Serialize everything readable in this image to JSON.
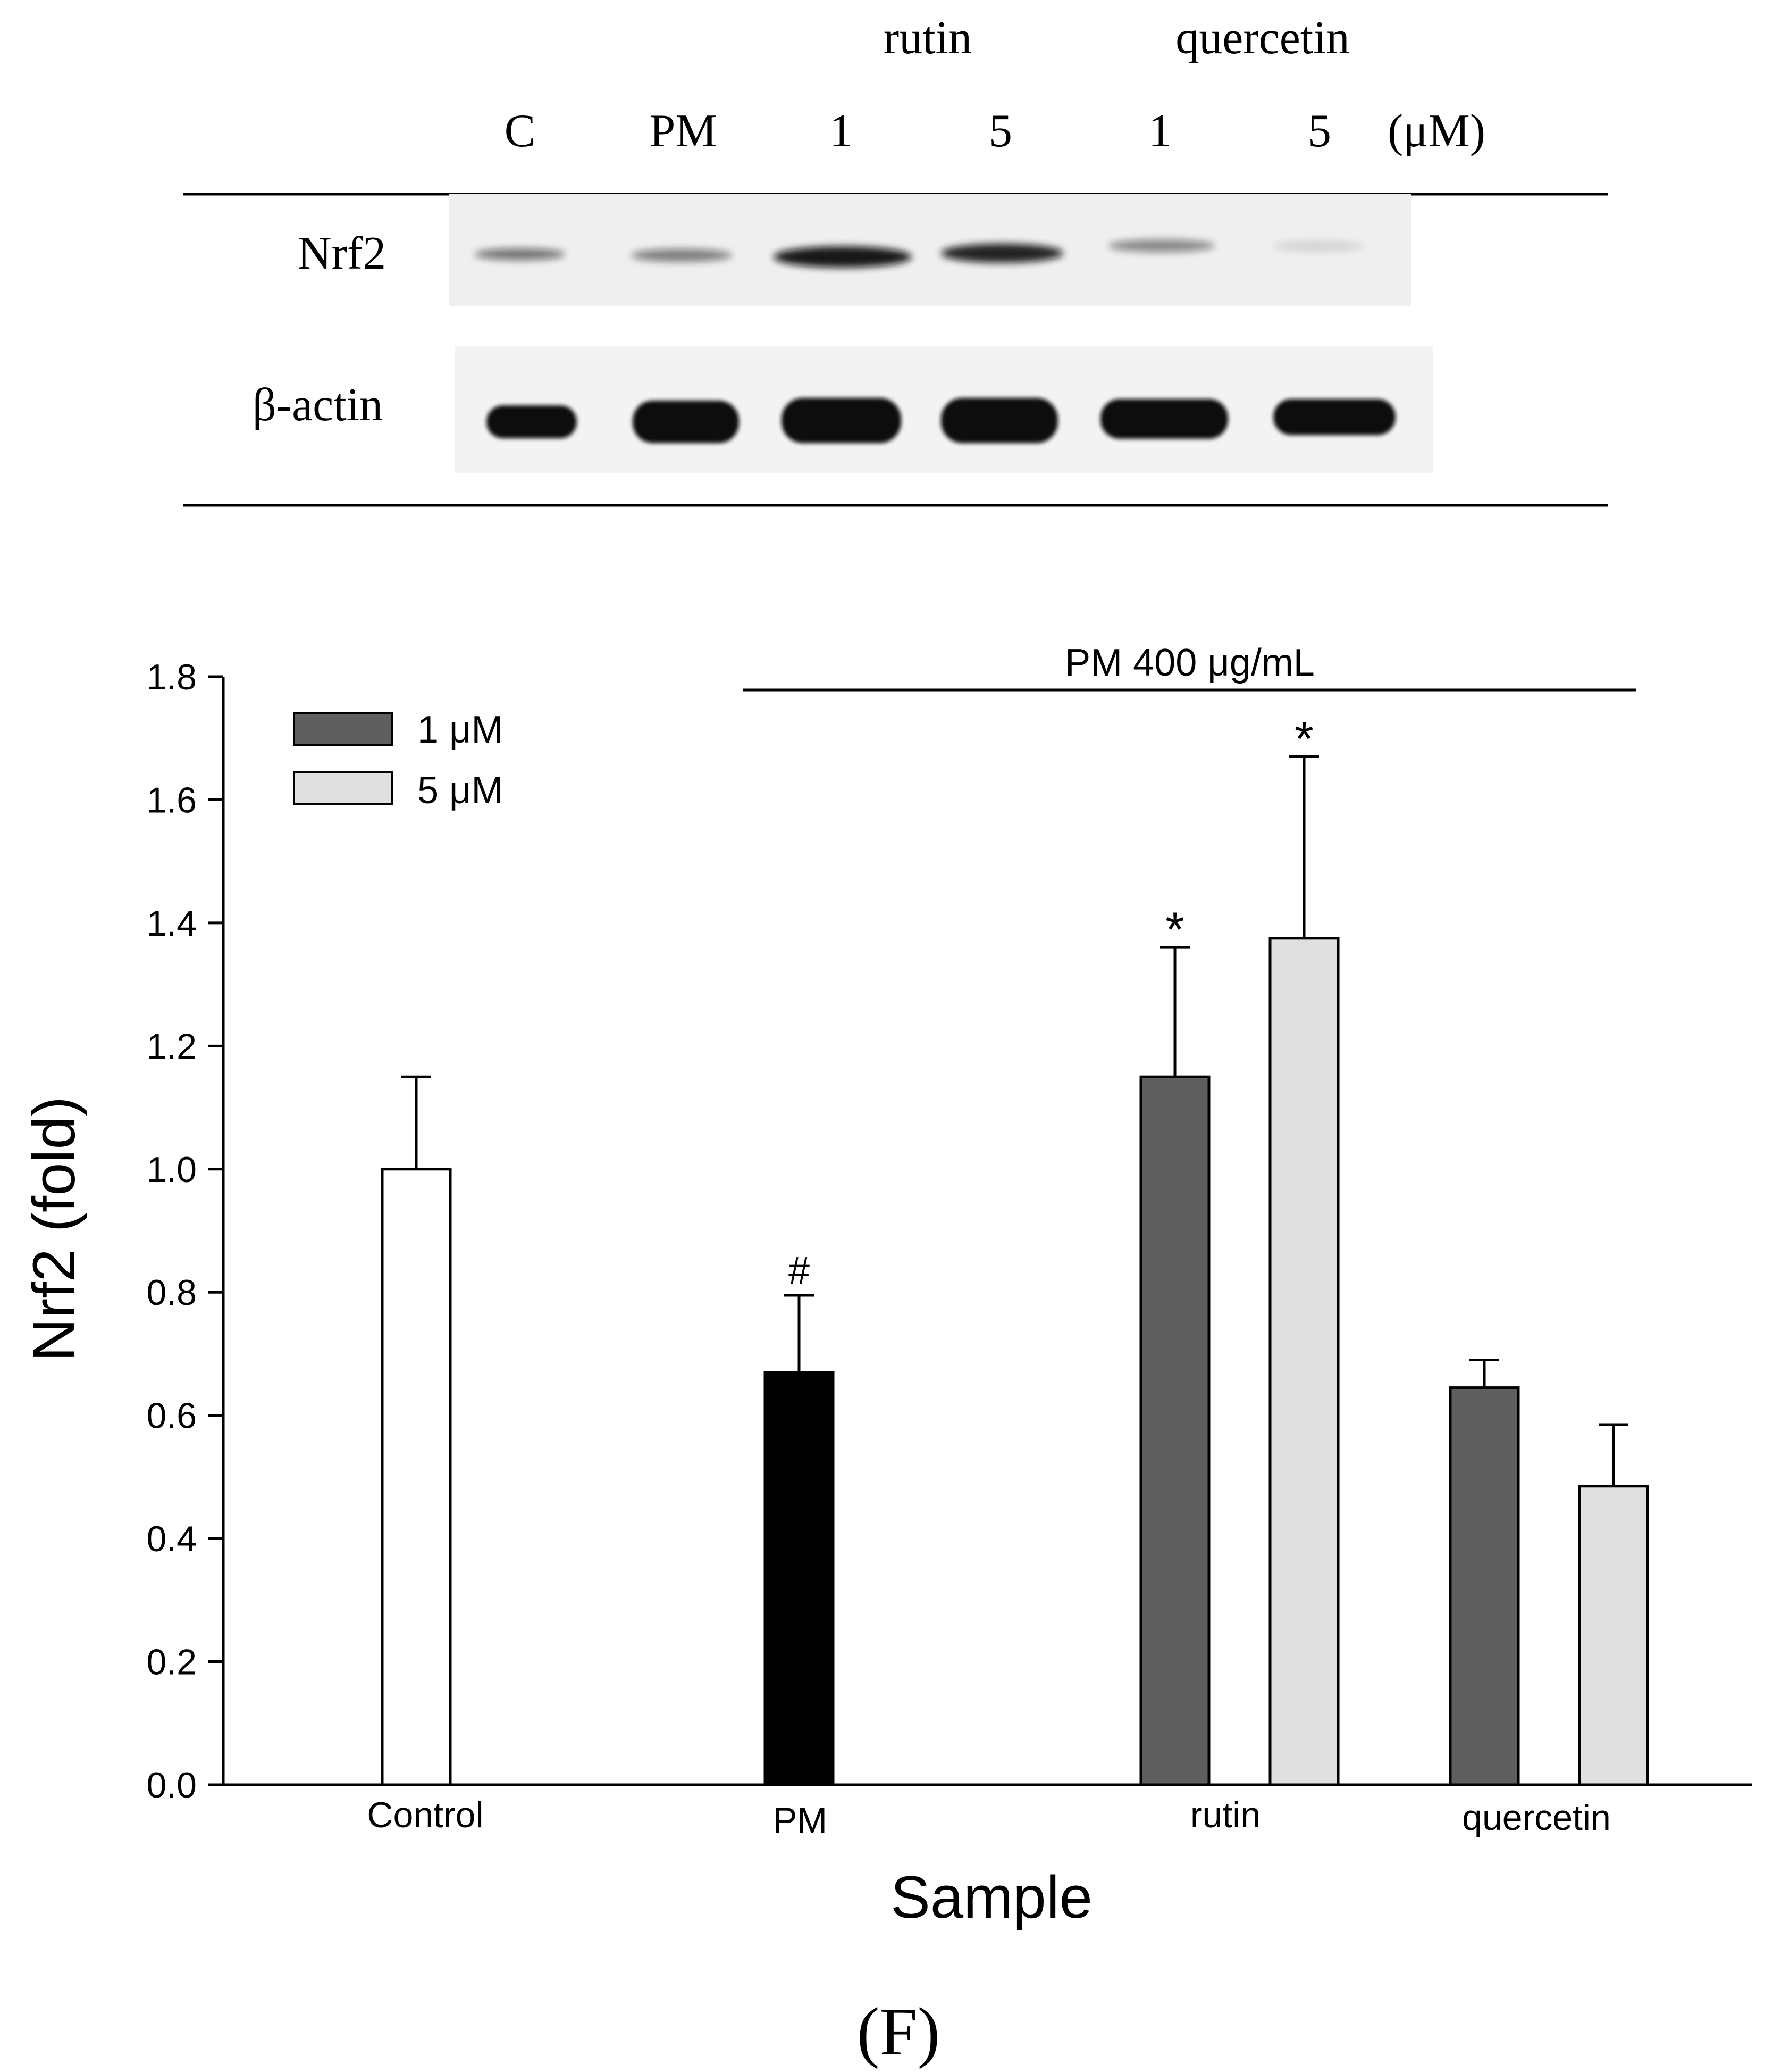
{
  "blot": {
    "group_labels": [
      "rutin",
      "quercetin"
    ],
    "lane_labels": [
      "C",
      "PM",
      "1",
      "5",
      "1",
      "5"
    ],
    "unit": "(μM)",
    "row_labels": [
      "Nrf2",
      "β-actin"
    ]
  },
  "panel_label": "(F)",
  "chart_data": {
    "type": "bar",
    "title": "",
    "xlabel": "Sample",
    "ylabel": "Nrf2 (fold)",
    "ylim": [
      0,
      1.8
    ],
    "yticks": [
      "0.0",
      "0.2",
      "0.4",
      "0.6",
      "0.8",
      "1.0",
      "1.2",
      "1.4",
      "1.6",
      "1.8"
    ],
    "categories": [
      "Control",
      "PM",
      "rutin",
      "quercetin"
    ],
    "bracket_label": "PM 400 μg/mL",
    "legend": {
      "position": "top-left",
      "entries": [
        "1 μM",
        "5 μM"
      ]
    },
    "colors": {
      "control": "#ffffff",
      "pm": "#000000",
      "dose_1": "#5f5f5f",
      "dose_5": "#e0e0e0"
    },
    "bars": [
      {
        "category": "Control",
        "value": 1.0,
        "error": 0.15,
        "color": "#ffffff",
        "annotation": ""
      },
      {
        "category": "PM",
        "value": 0.67,
        "error": 0.125,
        "color": "#000000",
        "annotation": "#"
      },
      {
        "category": "rutin",
        "series": "1 μM",
        "value": 1.15,
        "error": 0.21,
        "color": "#5f5f5f",
        "annotation": "*"
      },
      {
        "category": "rutin",
        "series": "5 μM",
        "value": 1.375,
        "error": 0.295,
        "color": "#e0e0e0",
        "annotation": "*"
      },
      {
        "category": "quercetin",
        "series": "1 μM",
        "value": 0.645,
        "error": 0.045,
        "color": "#5f5f5f",
        "annotation": ""
      },
      {
        "category": "quercetin",
        "series": "5 μM",
        "value": 0.485,
        "error": 0.1,
        "color": "#e0e0e0",
        "annotation": ""
      }
    ]
  }
}
